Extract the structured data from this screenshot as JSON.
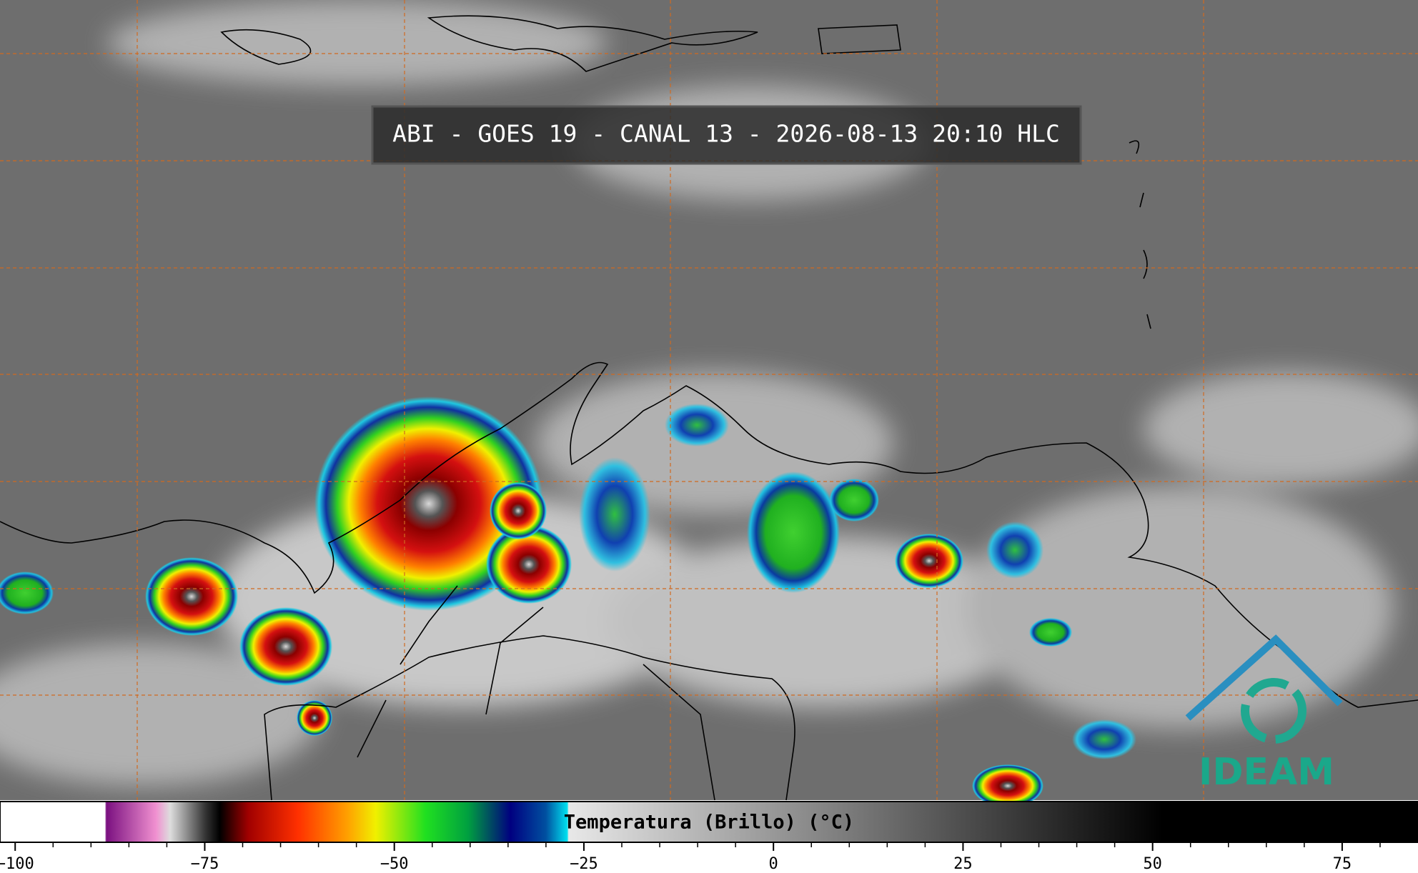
{
  "title": "ABI - GOES 19 - CANAL 13 - 2026-08-13 20:10 HLC",
  "colorbar": {
    "label": "Temperatura (Brillo) (°C)",
    "xlim": [
      -102,
      85
    ],
    "ticks": [
      {
        "value": -100,
        "label": "−100"
      },
      {
        "value": -75,
        "label": "−75"
      },
      {
        "value": -50,
        "label": "−50"
      },
      {
        "value": -25,
        "label": "−25"
      },
      0,
      25,
      50,
      75
    ]
  },
  "logo": "IDEAM"
}
